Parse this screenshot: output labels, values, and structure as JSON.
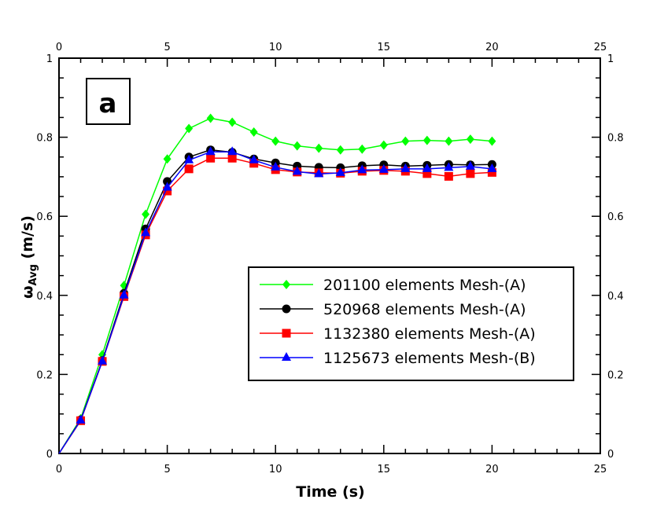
{
  "chart_data": {
    "type": "line",
    "panel_label": "a",
    "xlabel": "Time (s)",
    "ylabel_main": "ω",
    "ylabel_sub": "Avg",
    "ylabel_unit": " (m/s)",
    "xlim": [
      0,
      25
    ],
    "ylim": [
      0,
      1
    ],
    "x_ticks": [
      "0",
      "5",
      "10",
      "15",
      "20",
      "25"
    ],
    "y_ticks": [
      "0",
      "0.2",
      "0.4",
      "0.6",
      "0.8",
      "1"
    ],
    "grid": false,
    "legend_position": "center-right",
    "series": [
      {
        "name": "201100 elements Mesh-(A)",
        "color": "#00ff00",
        "marker": "diamond",
        "x": [
          0,
          1,
          2,
          3,
          4,
          5,
          6,
          7,
          8,
          9,
          10,
          11,
          12,
          13,
          14,
          15,
          16,
          17,
          18,
          19,
          20
        ],
        "y": [
          0,
          0.088,
          0.25,
          0.425,
          0.605,
          0.745,
          0.822,
          0.848,
          0.838,
          0.813,
          0.79,
          0.778,
          0.772,
          0.768,
          0.77,
          0.78,
          0.79,
          0.792,
          0.79,
          0.795,
          0.79
        ]
      },
      {
        "name": "520968 elements Mesh-(A)",
        "color": "#000000",
        "marker": "circle",
        "x": [
          0,
          1,
          2,
          3,
          4,
          5,
          6,
          7,
          8,
          9,
          10,
          11,
          12,
          13,
          14,
          15,
          16,
          17,
          18,
          19,
          20
        ],
        "y": [
          0,
          0.085,
          0.235,
          0.405,
          0.568,
          0.688,
          0.75,
          0.768,
          0.762,
          0.745,
          0.735,
          0.727,
          0.724,
          0.723,
          0.728,
          0.73,
          0.727,
          0.729,
          0.731,
          0.73,
          0.731
        ]
      },
      {
        "name": "1132380 elements Mesh-(A)",
        "color": "#ff0000",
        "marker": "square",
        "x": [
          0,
          1,
          2,
          3,
          4,
          5,
          6,
          7,
          8,
          9,
          10,
          11,
          12,
          13,
          14,
          15,
          16,
          17,
          18,
          19,
          20
        ],
        "y": [
          0,
          0.083,
          0.233,
          0.397,
          0.553,
          0.664,
          0.72,
          0.747,
          0.747,
          0.734,
          0.718,
          0.712,
          0.71,
          0.709,
          0.714,
          0.716,
          0.714,
          0.708,
          0.701,
          0.708,
          0.711
        ]
      },
      {
        "name": "1125673 elements Mesh-(B)",
        "color": "#0000ff",
        "marker": "triangle",
        "x": [
          0,
          1,
          2,
          3,
          4,
          5,
          6,
          7,
          8,
          9,
          10,
          11,
          12,
          13,
          14,
          15,
          16,
          17,
          18,
          19,
          20
        ],
        "y": [
          0,
          0.084,
          0.233,
          0.4,
          0.558,
          0.673,
          0.742,
          0.763,
          0.763,
          0.742,
          0.724,
          0.713,
          0.707,
          0.71,
          0.717,
          0.718,
          0.72,
          0.72,
          0.723,
          0.726,
          0.72
        ]
      }
    ]
  }
}
